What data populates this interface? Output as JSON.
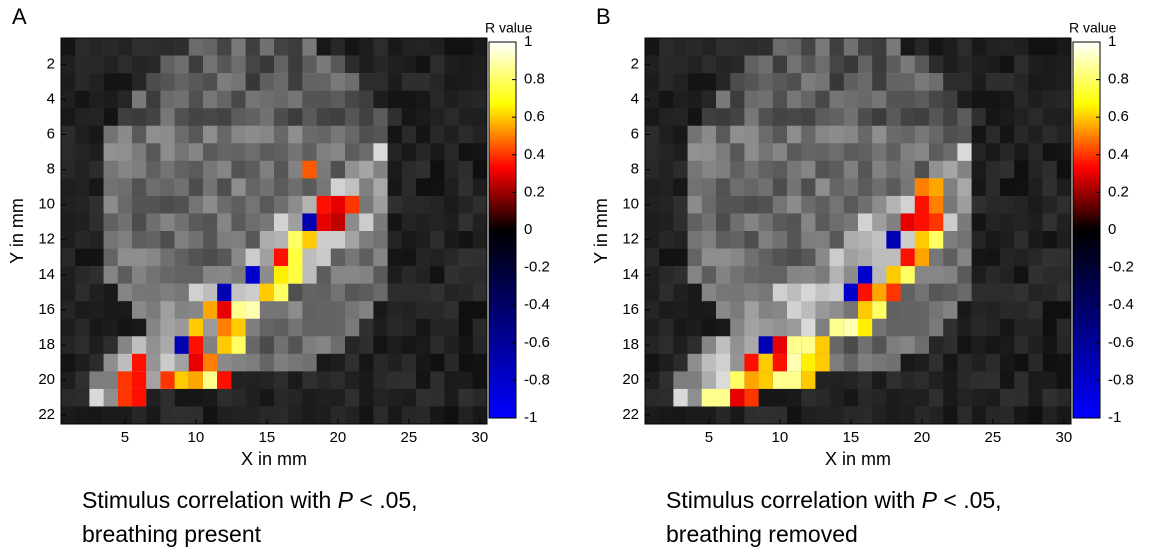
{
  "chart_data": [
    {
      "type": "heatmap",
      "panel_label": "A",
      "colorbar_label": "R value",
      "xlabel": "X in mm",
      "ylabel": "Y in mm",
      "caption": {
        "prefix": "Stimulus correlation with ",
        "italic": "P",
        "suffix": " < .05,",
        "line2": "breathing present"
      },
      "xlim": [
        0.5,
        30.5
      ],
      "ylim": [
        0.5,
        22.5
      ],
      "xticks": [
        5,
        10,
        15,
        20,
        25,
        30
      ],
      "yticks": [
        2,
        4,
        6,
        8,
        10,
        12,
        14,
        16,
        18,
        20,
        22
      ],
      "clim": [
        -1,
        1
      ],
      "cticks": [
        1,
        0.8,
        0.6,
        0.4,
        0.2,
        0,
        -0.2,
        -0.4,
        -0.6,
        -0.8,
        -1
      ],
      "colormap": [
        {
          "at": -1,
          "color": "#0000ff"
        },
        {
          "at": 0,
          "color": "#000000"
        },
        {
          "at": 0.33,
          "color": "#ff0000"
        },
        {
          "at": 0.67,
          "color": "#ffff00"
        },
        {
          "at": 1,
          "color": "#ffffff"
        }
      ],
      "cells": {
        "x": [
          18,
          19,
          20,
          21,
          18,
          19,
          20,
          17,
          18,
          16,
          17,
          14,
          16,
          17,
          12,
          15,
          16,
          11,
          12,
          13,
          14,
          10,
          12,
          13,
          9,
          10,
          12,
          13,
          6,
          10,
          11,
          5,
          6,
          8,
          9,
          10,
          11,
          12,
          5,
          6
        ],
        "y": [
          8,
          10,
          10,
          10,
          11,
          11,
          11,
          12,
          12,
          13,
          13,
          14,
          14,
          14,
          15,
          15,
          15,
          16,
          16,
          16,
          16,
          17,
          17,
          17,
          18,
          18,
          18,
          18,
          19,
          19,
          19,
          20,
          20,
          20,
          20,
          20,
          20,
          20,
          21,
          21
        ],
        "values": [
          0.45,
          0.35,
          0.3,
          0.4,
          -0.7,
          0.3,
          0.25,
          0.8,
          0.6,
          0.35,
          0.75,
          -0.8,
          0.65,
          0.75,
          -0.7,
          0.6,
          0.8,
          0.55,
          0.3,
          0.85,
          0.9,
          0.6,
          0.5,
          0.6,
          -0.7,
          0.35,
          0.6,
          0.8,
          0.35,
          0.3,
          0.5,
          0.4,
          0.35,
          0.4,
          0.6,
          0.55,
          0.85,
          0.35,
          0.4,
          0.35
        ]
      }
    },
    {
      "type": "heatmap",
      "panel_label": "B",
      "colorbar_label": "R value",
      "xlabel": "X in mm",
      "ylabel": "Y in mm",
      "caption": {
        "prefix": "Stimulus correlation with ",
        "italic": "P",
        "suffix": " < .05,",
        "line2": "breathing removed"
      },
      "xlim": [
        0.5,
        30.5
      ],
      "ylim": [
        0.5,
        22.5
      ],
      "xticks": [
        5,
        10,
        15,
        20,
        25,
        30
      ],
      "yticks": [
        2,
        4,
        6,
        8,
        10,
        12,
        14,
        16,
        18,
        20,
        22
      ],
      "clim": [
        -1,
        1
      ],
      "cticks": [
        1,
        0.8,
        0.6,
        0.4,
        0.2,
        0,
        -0.2,
        -0.4,
        -0.6,
        -0.8,
        -1
      ],
      "colormap": [
        {
          "at": -1,
          "color": "#0000ff"
        },
        {
          "at": 0,
          "color": "#000000"
        },
        {
          "at": 0.33,
          "color": "#ff0000"
        },
        {
          "at": 0.67,
          "color": "#ffff00"
        },
        {
          "at": 1,
          "color": "#ffffff"
        }
      ],
      "cells": {
        "x": [
          20,
          21,
          20,
          21,
          19,
          20,
          21,
          18,
          20,
          21,
          19,
          20,
          16,
          18,
          19,
          15,
          16,
          17,
          18,
          16,
          17,
          14,
          15,
          16,
          9,
          10,
          11,
          12,
          13,
          8,
          9,
          10,
          11,
          12,
          13,
          7,
          8,
          9,
          10,
          11,
          12,
          5,
          6,
          7,
          8
        ],
        "y": [
          9,
          9,
          10,
          10,
          11,
          11,
          11,
          12,
          12,
          12,
          13,
          13,
          14,
          14,
          14,
          15,
          15,
          15,
          15,
          16,
          16,
          17,
          17,
          17,
          18,
          18,
          18,
          18,
          18,
          19,
          19,
          19,
          19,
          19,
          19,
          20,
          20,
          20,
          20,
          20,
          20,
          21,
          21,
          21,
          21
        ],
        "values": [
          0.5,
          0.55,
          0.35,
          0.5,
          0.3,
          0.35,
          0.4,
          -0.7,
          0.6,
          0.8,
          0.35,
          0.55,
          -0.8,
          0.6,
          0.8,
          -0.8,
          0.35,
          0.55,
          0.4,
          0.6,
          0.8,
          0.85,
          0.9,
          0.65,
          -0.7,
          0.3,
          0.85,
          0.85,
          0.6,
          0.35,
          0.6,
          0.35,
          0.9,
          0.65,
          0.6,
          0.8,
          0.55,
          0.6,
          0.85,
          0.85,
          0.6,
          0.85,
          0.85,
          0.3,
          0.4
        ]
      }
    }
  ]
}
